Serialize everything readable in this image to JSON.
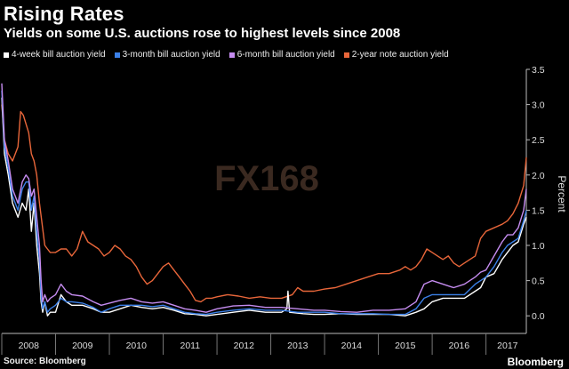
{
  "title": "Rising Rates",
  "subtitle": "Yields on some U.S. auctions rose to highest levels since 2008",
  "source": "Source: Bloomberg",
  "brand": "Bloomberg",
  "watermark": "FX168",
  "chart_data": {
    "type": "line",
    "title": "Rising Rates",
    "subtitle": "Yields on some U.S. auctions rose to highest levels since 2008",
    "xlabel": "",
    "ylabel": "Percent",
    "y_axis_side": "right",
    "ylim": [
      -0.25,
      3.5
    ],
    "xlim": [
      2008.0,
      2017.75
    ],
    "yticks": [
      0.0,
      0.5,
      1.0,
      1.5,
      2.0,
      2.5,
      3.0,
      3.5
    ],
    "ytick_labels": [
      "0.0",
      "0.5",
      "1.0",
      "1.5",
      "2.0",
      "2.5",
      "3.0",
      "3.5"
    ],
    "xtick_labels": [
      "2008",
      "2009",
      "2010",
      "2011",
      "2012",
      "2013",
      "2014",
      "2015",
      "2016",
      "2017"
    ],
    "grid": false,
    "legend_position": "top-left",
    "series": [
      {
        "name": "4-week bill auction yield",
        "color": "#ffffff",
        "points": [
          [
            2008.0,
            3.1
          ],
          [
            2008.05,
            2.3
          ],
          [
            2008.12,
            2.0
          ],
          [
            2008.2,
            1.6
          ],
          [
            2008.3,
            1.4
          ],
          [
            2008.38,
            1.6
          ],
          [
            2008.45,
            1.5
          ],
          [
            2008.5,
            1.8
          ],
          [
            2008.55,
            1.2
          ],
          [
            2008.6,
            1.6
          ],
          [
            2008.65,
            1.0
          ],
          [
            2008.7,
            0.6
          ],
          [
            2008.73,
            0.2
          ],
          [
            2008.76,
            0.05
          ],
          [
            2008.8,
            0.2
          ],
          [
            2008.85,
            0.0
          ],
          [
            2008.9,
            0.05
          ],
          [
            2009.0,
            0.05
          ],
          [
            2009.1,
            0.3
          ],
          [
            2009.2,
            0.2
          ],
          [
            2009.3,
            0.15
          ],
          [
            2009.5,
            0.15
          ],
          [
            2009.7,
            0.1
          ],
          [
            2009.85,
            0.05
          ],
          [
            2010.0,
            0.05
          ],
          [
            2010.2,
            0.1
          ],
          [
            2010.4,
            0.15
          ],
          [
            2010.6,
            0.12
          ],
          [
            2010.8,
            0.1
          ],
          [
            2011.0,
            0.12
          ],
          [
            2011.2,
            0.08
          ],
          [
            2011.4,
            0.03
          ],
          [
            2011.6,
            0.02
          ],
          [
            2011.8,
            0.0
          ],
          [
            2012.0,
            0.02
          ],
          [
            2012.3,
            0.05
          ],
          [
            2012.6,
            0.08
          ],
          [
            2012.9,
            0.05
          ],
          [
            2013.2,
            0.05
          ],
          [
            2013.3,
            0.1
          ],
          [
            2013.32,
            0.35
          ],
          [
            2013.35,
            0.05
          ],
          [
            2013.6,
            0.03
          ],
          [
            2013.8,
            0.02
          ],
          [
            2014.0,
            0.02
          ],
          [
            2014.3,
            0.03
          ],
          [
            2014.6,
            0.02
          ],
          [
            2014.9,
            0.02
          ],
          [
            2015.2,
            0.02
          ],
          [
            2015.5,
            0.0
          ],
          [
            2015.7,
            0.05
          ],
          [
            2015.85,
            0.1
          ],
          [
            2016.0,
            0.2
          ],
          [
            2016.2,
            0.25
          ],
          [
            2016.4,
            0.25
          ],
          [
            2016.6,
            0.25
          ],
          [
            2016.8,
            0.35
          ],
          [
            2016.9,
            0.4
          ],
          [
            2017.0,
            0.55
          ],
          [
            2017.15,
            0.6
          ],
          [
            2017.3,
            0.8
          ],
          [
            2017.4,
            0.9
          ],
          [
            2017.5,
            1.0
          ],
          [
            2017.6,
            1.05
          ],
          [
            2017.7,
            1.3
          ],
          [
            2017.75,
            1.4
          ]
        ]
      },
      {
        "name": "3-month bill auction yield",
        "color": "#3b80e8",
        "points": [
          [
            2008.0,
            3.2
          ],
          [
            2008.05,
            2.4
          ],
          [
            2008.12,
            2.1
          ],
          [
            2008.2,
            1.7
          ],
          [
            2008.3,
            1.5
          ],
          [
            2008.38,
            1.8
          ],
          [
            2008.45,
            1.9
          ],
          [
            2008.5,
            1.9
          ],
          [
            2008.55,
            1.5
          ],
          [
            2008.6,
            1.7
          ],
          [
            2008.65,
            1.2
          ],
          [
            2008.7,
            0.8
          ],
          [
            2008.73,
            0.3
          ],
          [
            2008.76,
            0.1
          ],
          [
            2008.8,
            0.2
          ],
          [
            2008.85,
            0.05
          ],
          [
            2008.9,
            0.1
          ],
          [
            2009.0,
            0.15
          ],
          [
            2009.1,
            0.25
          ],
          [
            2009.2,
            0.2
          ],
          [
            2009.3,
            0.2
          ],
          [
            2009.5,
            0.18
          ],
          [
            2009.7,
            0.12
          ],
          [
            2009.85,
            0.05
          ],
          [
            2010.0,
            0.1
          ],
          [
            2010.2,
            0.15
          ],
          [
            2010.4,
            0.15
          ],
          [
            2010.6,
            0.15
          ],
          [
            2010.8,
            0.13
          ],
          [
            2011.0,
            0.15
          ],
          [
            2011.2,
            0.1
          ],
          [
            2011.4,
            0.05
          ],
          [
            2011.6,
            0.03
          ],
          [
            2011.8,
            0.02
          ],
          [
            2012.0,
            0.05
          ],
          [
            2012.3,
            0.08
          ],
          [
            2012.6,
            0.1
          ],
          [
            2012.9,
            0.08
          ],
          [
            2013.2,
            0.08
          ],
          [
            2013.5,
            0.05
          ],
          [
            2013.8,
            0.05
          ],
          [
            2014.0,
            0.05
          ],
          [
            2014.3,
            0.03
          ],
          [
            2014.6,
            0.03
          ],
          [
            2014.9,
            0.03
          ],
          [
            2015.2,
            0.02
          ],
          [
            2015.5,
            0.02
          ],
          [
            2015.7,
            0.1
          ],
          [
            2015.85,
            0.25
          ],
          [
            2016.0,
            0.3
          ],
          [
            2016.2,
            0.3
          ],
          [
            2016.4,
            0.3
          ],
          [
            2016.6,
            0.3
          ],
          [
            2016.8,
            0.45
          ],
          [
            2016.9,
            0.5
          ],
          [
            2017.0,
            0.55
          ],
          [
            2017.15,
            0.7
          ],
          [
            2017.3,
            0.9
          ],
          [
            2017.4,
            1.0
          ],
          [
            2017.5,
            1.05
          ],
          [
            2017.6,
            1.1
          ],
          [
            2017.7,
            1.35
          ],
          [
            2017.75,
            1.5
          ]
        ]
      },
      {
        "name": "6-month bill auction yield",
        "color": "#c58cf0",
        "points": [
          [
            2008.0,
            3.3
          ],
          [
            2008.05,
            2.5
          ],
          [
            2008.12,
            2.2
          ],
          [
            2008.2,
            1.8
          ],
          [
            2008.3,
            1.6
          ],
          [
            2008.38,
            1.9
          ],
          [
            2008.45,
            2.0
          ],
          [
            2008.5,
            1.95
          ],
          [
            2008.55,
            1.7
          ],
          [
            2008.6,
            1.8
          ],
          [
            2008.65,
            1.4
          ],
          [
            2008.7,
            1.0
          ],
          [
            2008.73,
            0.5
          ],
          [
            2008.76,
            0.2
          ],
          [
            2008.8,
            0.3
          ],
          [
            2008.85,
            0.2
          ],
          [
            2008.9,
            0.25
          ],
          [
            2009.0,
            0.3
          ],
          [
            2009.1,
            0.45
          ],
          [
            2009.2,
            0.35
          ],
          [
            2009.3,
            0.3
          ],
          [
            2009.5,
            0.28
          ],
          [
            2009.7,
            0.2
          ],
          [
            2009.85,
            0.15
          ],
          [
            2010.0,
            0.18
          ],
          [
            2010.2,
            0.22
          ],
          [
            2010.4,
            0.25
          ],
          [
            2010.6,
            0.2
          ],
          [
            2010.8,
            0.18
          ],
          [
            2011.0,
            0.2
          ],
          [
            2011.2,
            0.15
          ],
          [
            2011.4,
            0.1
          ],
          [
            2011.6,
            0.08
          ],
          [
            2011.8,
            0.05
          ],
          [
            2012.0,
            0.1
          ],
          [
            2012.3,
            0.14
          ],
          [
            2012.6,
            0.15
          ],
          [
            2012.9,
            0.12
          ],
          [
            2013.2,
            0.12
          ],
          [
            2013.5,
            0.1
          ],
          [
            2013.8,
            0.08
          ],
          [
            2014.0,
            0.08
          ],
          [
            2014.3,
            0.06
          ],
          [
            2014.6,
            0.05
          ],
          [
            2014.9,
            0.08
          ],
          [
            2015.2,
            0.08
          ],
          [
            2015.5,
            0.1
          ],
          [
            2015.7,
            0.2
          ],
          [
            2015.85,
            0.45
          ],
          [
            2016.0,
            0.5
          ],
          [
            2016.2,
            0.45
          ],
          [
            2016.4,
            0.4
          ],
          [
            2016.6,
            0.45
          ],
          [
            2016.8,
            0.55
          ],
          [
            2016.9,
            0.62
          ],
          [
            2017.0,
            0.65
          ],
          [
            2017.15,
            0.85
          ],
          [
            2017.3,
            1.05
          ],
          [
            2017.4,
            1.15
          ],
          [
            2017.5,
            1.15
          ],
          [
            2017.6,
            1.25
          ],
          [
            2017.7,
            1.5
          ],
          [
            2017.75,
            1.8
          ]
        ]
      },
      {
        "name": "2-year note auction yield",
        "color": "#e8663a",
        "points": [
          [
            2008.0,
            3.0
          ],
          [
            2008.05,
            2.5
          ],
          [
            2008.12,
            2.3
          ],
          [
            2008.2,
            2.2
          ],
          [
            2008.3,
            2.4
          ],
          [
            2008.35,
            2.9
          ],
          [
            2008.4,
            2.85
          ],
          [
            2008.5,
            2.6
          ],
          [
            2008.55,
            2.3
          ],
          [
            2008.6,
            2.2
          ],
          [
            2008.65,
            2.0
          ],
          [
            2008.7,
            1.6
          ],
          [
            2008.75,
            1.3
          ],
          [
            2008.8,
            1.0
          ],
          [
            2008.85,
            0.95
          ],
          [
            2008.9,
            0.9
          ],
          [
            2009.0,
            0.9
          ],
          [
            2009.1,
            0.95
          ],
          [
            2009.2,
            0.95
          ],
          [
            2009.3,
            0.85
          ],
          [
            2009.4,
            0.95
          ],
          [
            2009.5,
            1.2
          ],
          [
            2009.6,
            1.05
          ],
          [
            2009.7,
            1.0
          ],
          [
            2009.8,
            0.95
          ],
          [
            2009.9,
            0.85
          ],
          [
            2010.0,
            0.9
          ],
          [
            2010.1,
            1.0
          ],
          [
            2010.2,
            0.95
          ],
          [
            2010.3,
            0.85
          ],
          [
            2010.4,
            0.8
          ],
          [
            2010.5,
            0.7
          ],
          [
            2010.6,
            0.55
          ],
          [
            2010.7,
            0.45
          ],
          [
            2010.8,
            0.5
          ],
          [
            2010.9,
            0.6
          ],
          [
            2011.0,
            0.7
          ],
          [
            2011.1,
            0.75
          ],
          [
            2011.2,
            0.65
          ],
          [
            2011.3,
            0.55
          ],
          [
            2011.4,
            0.45
          ],
          [
            2011.5,
            0.35
          ],
          [
            2011.6,
            0.22
          ],
          [
            2011.7,
            0.2
          ],
          [
            2011.8,
            0.25
          ],
          [
            2011.9,
            0.25
          ],
          [
            2012.0,
            0.27
          ],
          [
            2012.2,
            0.3
          ],
          [
            2012.4,
            0.28
          ],
          [
            2012.6,
            0.25
          ],
          [
            2012.8,
            0.27
          ],
          [
            2013.0,
            0.25
          ],
          [
            2013.2,
            0.25
          ],
          [
            2013.4,
            0.3
          ],
          [
            2013.5,
            0.4
          ],
          [
            2013.6,
            0.35
          ],
          [
            2013.8,
            0.35
          ],
          [
            2014.0,
            0.38
          ],
          [
            2014.2,
            0.4
          ],
          [
            2014.4,
            0.45
          ],
          [
            2014.6,
            0.5
          ],
          [
            2014.8,
            0.55
          ],
          [
            2015.0,
            0.6
          ],
          [
            2015.2,
            0.6
          ],
          [
            2015.4,
            0.65
          ],
          [
            2015.5,
            0.7
          ],
          [
            2015.6,
            0.65
          ],
          [
            2015.7,
            0.7
          ],
          [
            2015.8,
            0.8
          ],
          [
            2015.9,
            0.95
          ],
          [
            2016.0,
            0.9
          ],
          [
            2016.1,
            0.85
          ],
          [
            2016.2,
            0.8
          ],
          [
            2016.3,
            0.85
          ],
          [
            2016.4,
            0.75
          ],
          [
            2016.5,
            0.7
          ],
          [
            2016.6,
            0.75
          ],
          [
            2016.7,
            0.8
          ],
          [
            2016.8,
            0.85
          ],
          [
            2016.9,
            1.1
          ],
          [
            2017.0,
            1.2
          ],
          [
            2017.15,
            1.25
          ],
          [
            2017.3,
            1.3
          ],
          [
            2017.4,
            1.35
          ],
          [
            2017.5,
            1.45
          ],
          [
            2017.6,
            1.6
          ],
          [
            2017.7,
            1.85
          ],
          [
            2017.75,
            2.25
          ]
        ]
      }
    ]
  }
}
